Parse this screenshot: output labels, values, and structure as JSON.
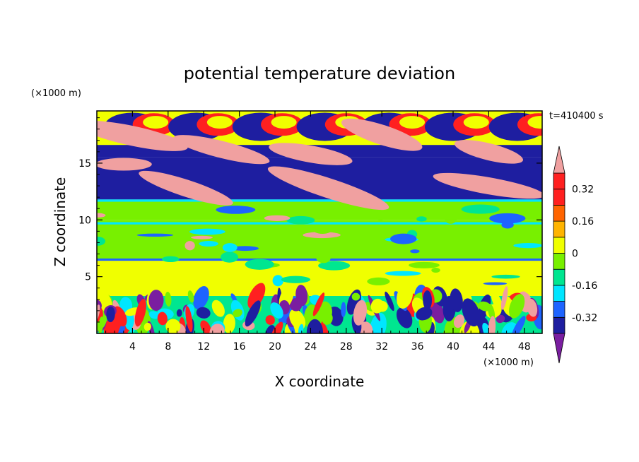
{
  "chart_data": {
    "type": "heatmap",
    "title": "potential temperature deviation",
    "xlabel": "X coordinate",
    "ylabel": "Z coordinate",
    "x_unit": "(×1000 m)",
    "y_unit": "(×1000 m)",
    "time_label": "t=410400 s",
    "x_ticks": [
      4,
      8,
      12,
      16,
      20,
      24,
      28,
      32,
      36,
      40,
      44,
      48
    ],
    "y_ticks": [
      5,
      10,
      15
    ],
    "xlim": [
      0,
      50
    ],
    "ylim": [
      0,
      19.6
    ],
    "colorbar": {
      "labels": [
        "0.32",
        "0.16",
        "0",
        "-0.16",
        "-0.32"
      ],
      "label_values": [
        0.32,
        0.16,
        0,
        -0.16,
        -0.32
      ],
      "levels": [
        -0.4,
        -0.32,
        -0.24,
        -0.16,
        -0.08,
        0,
        0.08,
        0.16,
        0.24,
        0.32,
        0.4
      ],
      "colors": [
        "#7a1ea0",
        "#1e1ea0",
        "#1e64ff",
        "#00e6ff",
        "#00e690",
        "#78f000",
        "#f0ff00",
        "#ffb400",
        "#ff6400",
        "#ff2020",
        "#ff2020",
        "#f0a0a0"
      ],
      "extend": "both",
      "under_color": "#7a1ea0",
      "over_color": "#f0a0a0"
    },
    "layers": [
      {
        "z": [
          0,
          3.3
        ],
        "description_values": "turbulent boundary layer, mixed -0.4 to 0.4"
      },
      {
        "z": [
          3.3,
          6.5
        ],
        "value": 0.04
      },
      {
        "z": [
          6.5,
          10.0
        ],
        "value": -0.02
      },
      {
        "z": [
          10.0,
          11.8
        ],
        "value": -0.08
      },
      {
        "z": [
          11.8,
          14.0
        ],
        "value": -0.4
      },
      {
        "z": [
          14.0,
          15.5
        ],
        "value": -0.36
      },
      {
        "z": [
          15.5,
          16.5
        ],
        "value": -0.4
      },
      {
        "z": [
          16.5,
          19.6
        ],
        "value": 0.04
      }
    ]
  }
}
